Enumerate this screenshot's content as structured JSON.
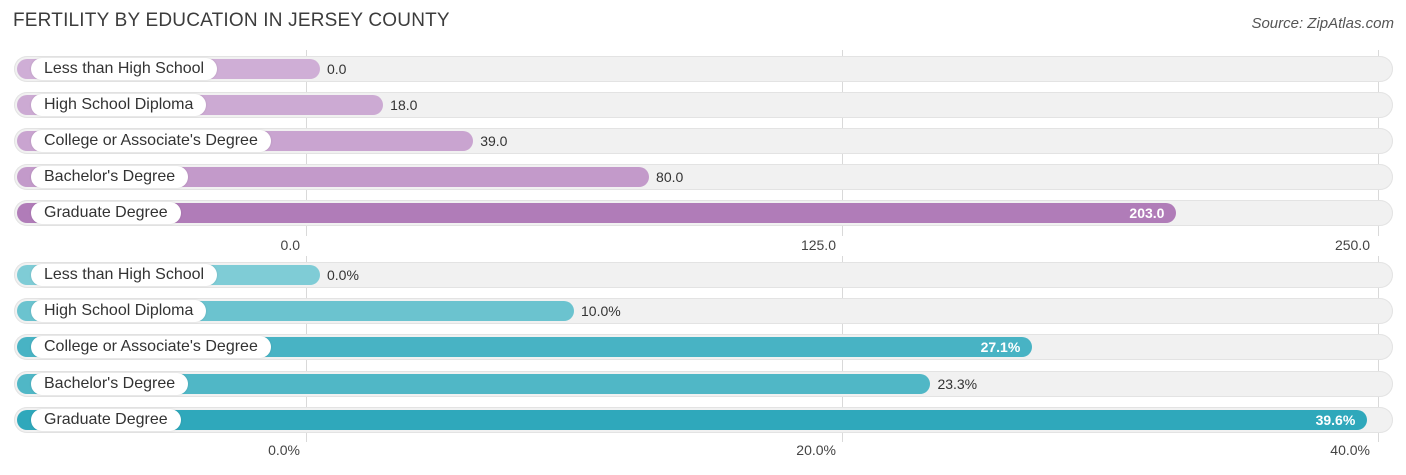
{
  "title": "FERTILITY BY EDUCATION IN JERSEY COUNTY",
  "source": "Source: ZipAtlas.com",
  "colors": {
    "purple": "#b07cb8",
    "purple_light": "#cfaed6",
    "teal": "#2fa8bb",
    "teal_light": "#7fccd6"
  },
  "chart_data": [
    {
      "type": "bar",
      "orientation": "horizontal",
      "categories": [
        "Less than High School",
        "High School Diploma",
        "College or Associate's Degree",
        "Bachelor's Degree",
        "Graduate Degree"
      ],
      "values": [
        0.0,
        18.0,
        39.0,
        80.0,
        203.0
      ],
      "value_labels": [
        "0.0",
        "18.0",
        "39.0",
        "80.0",
        "203.0"
      ],
      "xlim": [
        0,
        250
      ],
      "ticks": [
        0,
        125,
        250
      ],
      "tick_labels": [
        "0.0",
        "125.0",
        "250.0"
      ],
      "grid": true
    },
    {
      "type": "bar",
      "orientation": "horizontal",
      "categories": [
        "Less than High School",
        "High School Diploma",
        "College or Associate's Degree",
        "Bachelor's Degree",
        "Graduate Degree"
      ],
      "values": [
        0.0,
        10.0,
        27.1,
        23.3,
        39.6
      ],
      "value_labels": [
        "0.0%",
        "10.0%",
        "27.1%",
        "23.3%",
        "39.6%"
      ],
      "xlim": [
        0,
        40
      ],
      "ticks": [
        0,
        20,
        40
      ],
      "tick_labels": [
        "0.0%",
        "20.0%",
        "40.0%"
      ],
      "grid": true
    }
  ]
}
